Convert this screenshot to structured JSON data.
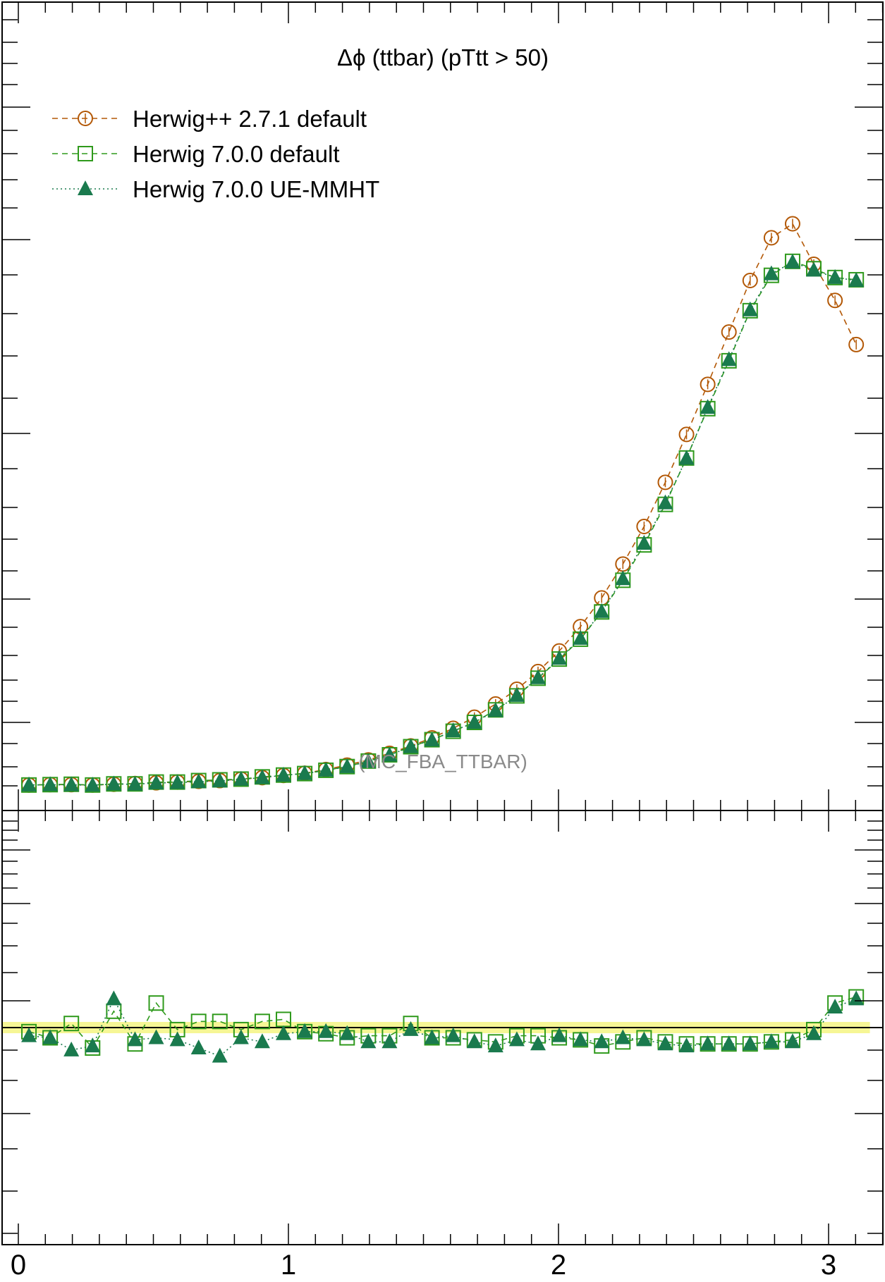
{
  "chart_data": {
    "type": "line",
    "title": "Δϕ (ttbar) (pTtt > 50)",
    "watermark": "(MC_FBA_TTBAR)",
    "xlim": [
      0,
      3.2
    ],
    "x_ticks": [
      "0",
      "1",
      "2",
      "3"
    ],
    "main_ylim": [
      0,
      1.0
    ],
    "ratio_ylim": [
      0.0,
      2.0
    ],
    "grid": false,
    "legend_position": "top-left",
    "reference_band_color": "#f5f58a",
    "x": [
      0.0393,
      0.1178,
      0.1963,
      0.2749,
      0.3534,
      0.432,
      0.5105,
      0.589,
      0.6676,
      0.7461,
      0.8247,
      0.9032,
      0.9817,
      1.0603,
      1.1388,
      1.2174,
      1.2959,
      1.3744,
      1.453,
      1.5315,
      1.6101,
      1.6886,
      1.7671,
      1.8457,
      1.9242,
      2.0028,
      2.0813,
      2.1598,
      2.2384,
      2.3169,
      2.3955,
      2.474,
      2.5525,
      2.6311,
      2.7096,
      2.7882,
      2.8667,
      2.9452,
      3.0238,
      3.1023
    ],
    "series": [
      {
        "name": "Herwig++ 2.7.1 default",
        "color": "#b35806",
        "marker": "open-circle",
        "line": "dashed",
        "values": [
          0.004,
          0.0045,
          0.0045,
          0.004,
          0.005,
          0.006,
          0.007,
          0.008,
          0.009,
          0.01,
          0.012,
          0.014,
          0.017,
          0.02,
          0.025,
          0.031,
          0.038,
          0.047,
          0.057,
          0.068,
          0.081,
          0.096,
          0.114,
          0.134,
          0.158,
          0.186,
          0.219,
          0.258,
          0.304,
          0.355,
          0.415,
          0.48,
          0.548,
          0.619,
          0.689,
          0.747,
          0.766,
          0.711,
          0.662,
          0.602
        ]
      },
      {
        "name": "Herwig 7.0.0 default",
        "color": "#2f9a1c",
        "marker": "open-square",
        "line": "dashed",
        "values": [
          0.004,
          0.0045,
          0.005,
          0.004,
          0.0055,
          0.0055,
          0.008,
          0.008,
          0.01,
          0.011,
          0.012,
          0.015,
          0.0175,
          0.0195,
          0.024,
          0.029,
          0.0365,
          0.045,
          0.056,
          0.0655,
          0.077,
          0.089,
          0.106,
          0.125,
          0.149,
          0.175,
          0.202,
          0.239,
          0.282,
          0.33,
          0.385,
          0.448,
          0.515,
          0.58,
          0.648,
          0.696,
          0.715,
          0.705,
          0.693,
          0.69
        ]
      },
      {
        "name": "Herwig 7.0.0 UE-MMHT",
        "color": "#1a7a4e",
        "marker": "filled-triangle",
        "line": "dotted",
        "values": [
          0.004,
          0.0043,
          0.0042,
          0.0037,
          0.0053,
          0.005,
          0.0068,
          0.0072,
          0.0085,
          0.0095,
          0.0117,
          0.014,
          0.0172,
          0.0195,
          0.024,
          0.0288,
          0.036,
          0.0445,
          0.056,
          0.065,
          0.0775,
          0.0888,
          0.105,
          0.1255,
          0.1495,
          0.1758,
          0.203,
          0.2395,
          0.284,
          0.332,
          0.387,
          0.4475,
          0.5165,
          0.5815,
          0.649,
          0.698,
          0.714,
          0.703,
          0.693,
          0.689
        ]
      }
    ],
    "ratio_series": [
      {
        "name": "Herwig 7.0.0 default",
        "values": [
          0.98,
          0.95,
          1.02,
          0.9,
          1.08,
          0.92,
          1.12,
          0.99,
          1.03,
          1.03,
          0.99,
          1.03,
          1.04,
          0.98,
          0.97,
          0.95,
          0.96,
          0.96,
          1.02,
          0.95,
          0.95,
          0.94,
          0.93,
          0.96,
          0.96,
          0.95,
          0.94,
          0.91,
          0.93,
          0.95,
          0.93,
          0.92,
          0.92,
          0.92,
          0.92,
          0.93,
          0.94,
          0.99,
          1.12,
          1.15
        ]
      },
      {
        "name": "Herwig 7.0.0 UE-MMHT",
        "values": [
          0.96,
          0.95,
          0.89,
          0.91,
          1.14,
          0.94,
          0.95,
          0.94,
          0.9,
          0.86,
          0.95,
          0.93,
          0.97,
          0.98,
          0.98,
          0.97,
          0.93,
          0.93,
          0.99,
          0.95,
          0.96,
          0.93,
          0.91,
          0.94,
          0.92,
          0.96,
          0.94,
          0.93,
          0.95,
          0.94,
          0.92,
          0.91,
          0.92,
          0.92,
          0.92,
          0.93,
          0.93,
          0.97,
          1.1,
          1.14
        ]
      }
    ]
  }
}
